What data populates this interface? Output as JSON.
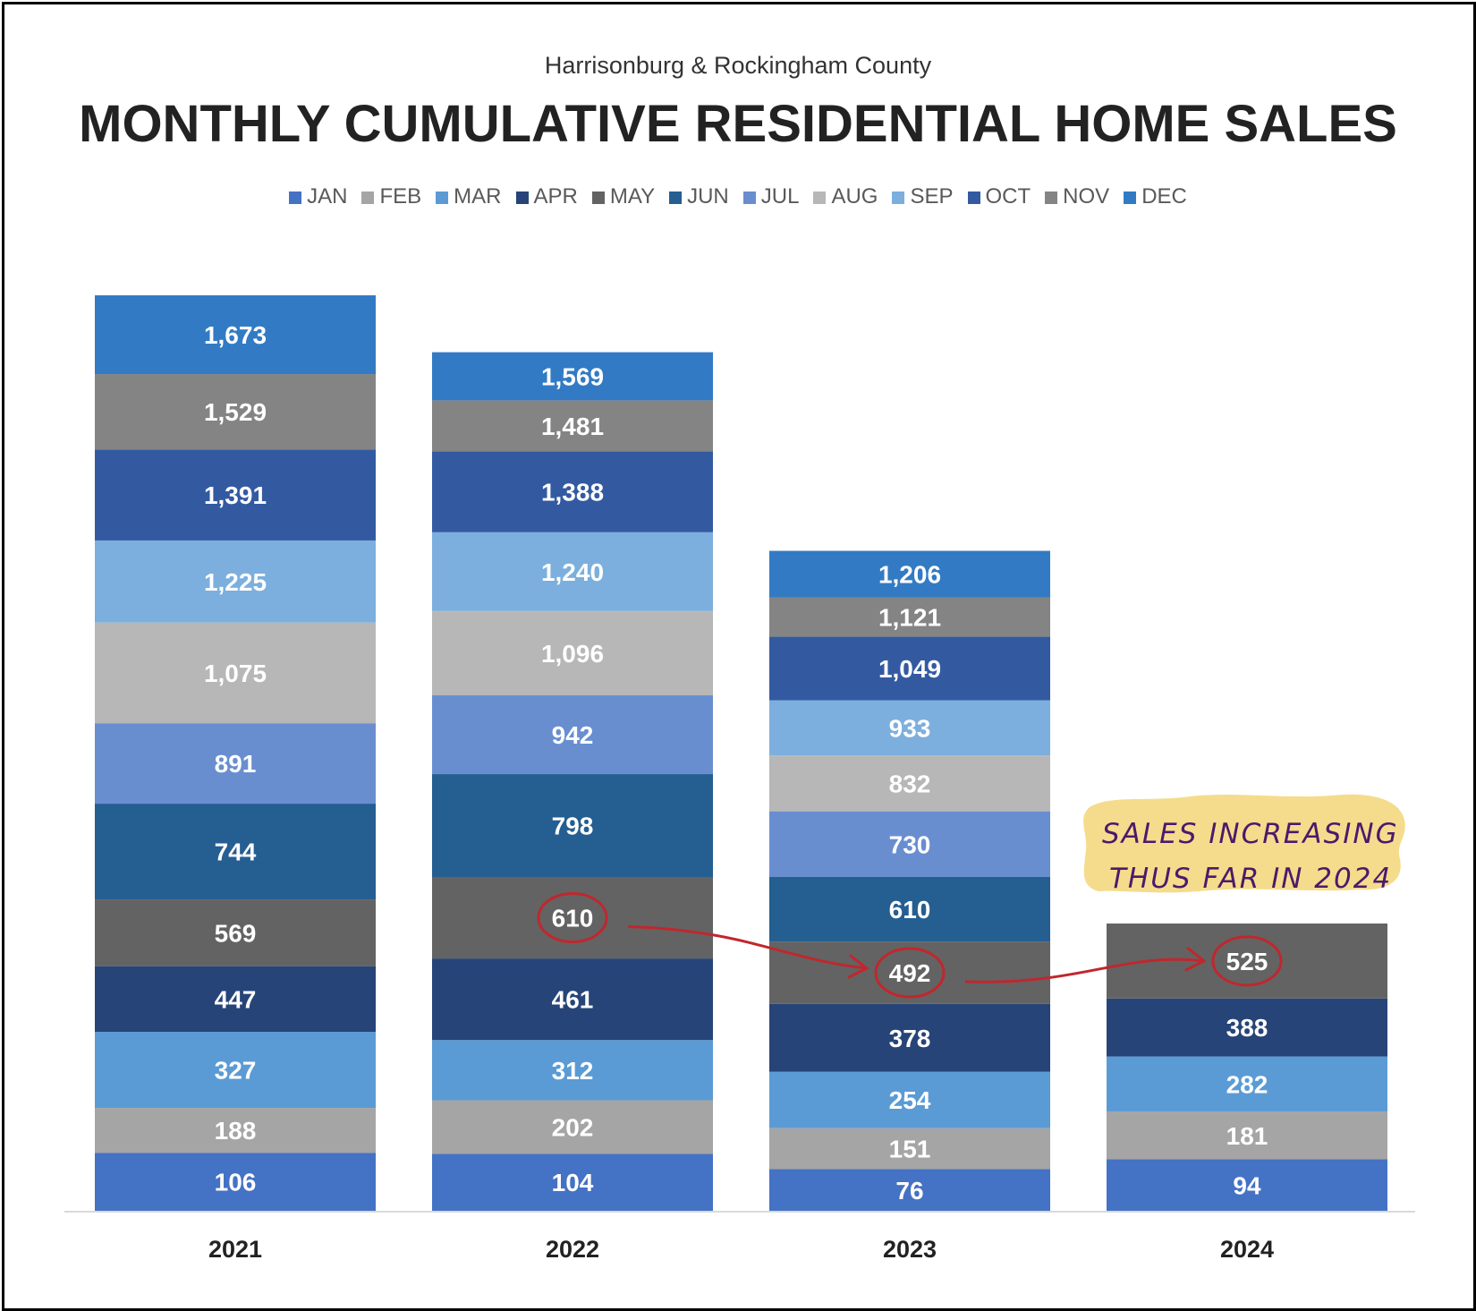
{
  "header": {
    "subtitle": "Harrisonburg & Rockingham County",
    "title": "MONTHLY CUMULATIVE RESIDENTIAL HOME SALES"
  },
  "chart_data": {
    "type": "bar",
    "stacked": true,
    "title": "MONTHLY CUMULATIVE RESIDENTIAL HOME SALES",
    "subtitle": "Harrisonburg & Rockingham County",
    "categories": [
      "2021",
      "2022",
      "2023",
      "2024"
    ],
    "legend_position": "top",
    "series": [
      {
        "name": "JAN",
        "color": "#4472C4",
        "values": [
          106,
          104,
          76,
          94
        ]
      },
      {
        "name": "FEB",
        "color": "#A5A5A5",
        "values": [
          188,
          202,
          151,
          181
        ]
      },
      {
        "name": "MAR",
        "color": "#5B9BD5",
        "values": [
          327,
          312,
          254,
          282
        ]
      },
      {
        "name": "APR",
        "color": "#264478",
        "values": [
          447,
          461,
          378,
          388
        ]
      },
      {
        "name": "MAY",
        "color": "#636363",
        "values": [
          569,
          610,
          492,
          525
        ]
      },
      {
        "name": "JUN",
        "color": "#255E91",
        "values": [
          744,
          798,
          610,
          null
        ]
      },
      {
        "name": "JUL",
        "color": "#698ED0",
        "values": [
          891,
          942,
          730,
          null
        ]
      },
      {
        "name": "AUG",
        "color": "#B7B7B7",
        "values": [
          1075,
          1096,
          832,
          null
        ]
      },
      {
        "name": "SEP",
        "color": "#7CAFDD",
        "values": [
          1225,
          1240,
          933,
          null
        ]
      },
      {
        "name": "OCT",
        "color": "#335AA1",
        "values": [
          1391,
          1388,
          1049,
          null
        ]
      },
      {
        "name": "NOV",
        "color": "#848484",
        "values": [
          1529,
          1481,
          1121,
          null
        ]
      },
      {
        "name": "DEC",
        "color": "#327BC4",
        "values": [
          1673,
          1569,
          1206,
          null
        ]
      }
    ],
    "annotation": {
      "lines": [
        "SALES INCREASING",
        "THUS FAR IN 2024"
      ],
      "highlighted": [
        "2022 MAY 610",
        "2023 MAY 492",
        "2024 MAY 525"
      ],
      "highlight_color": "#f5dc8c",
      "ink_color": "#c0272d"
    }
  }
}
